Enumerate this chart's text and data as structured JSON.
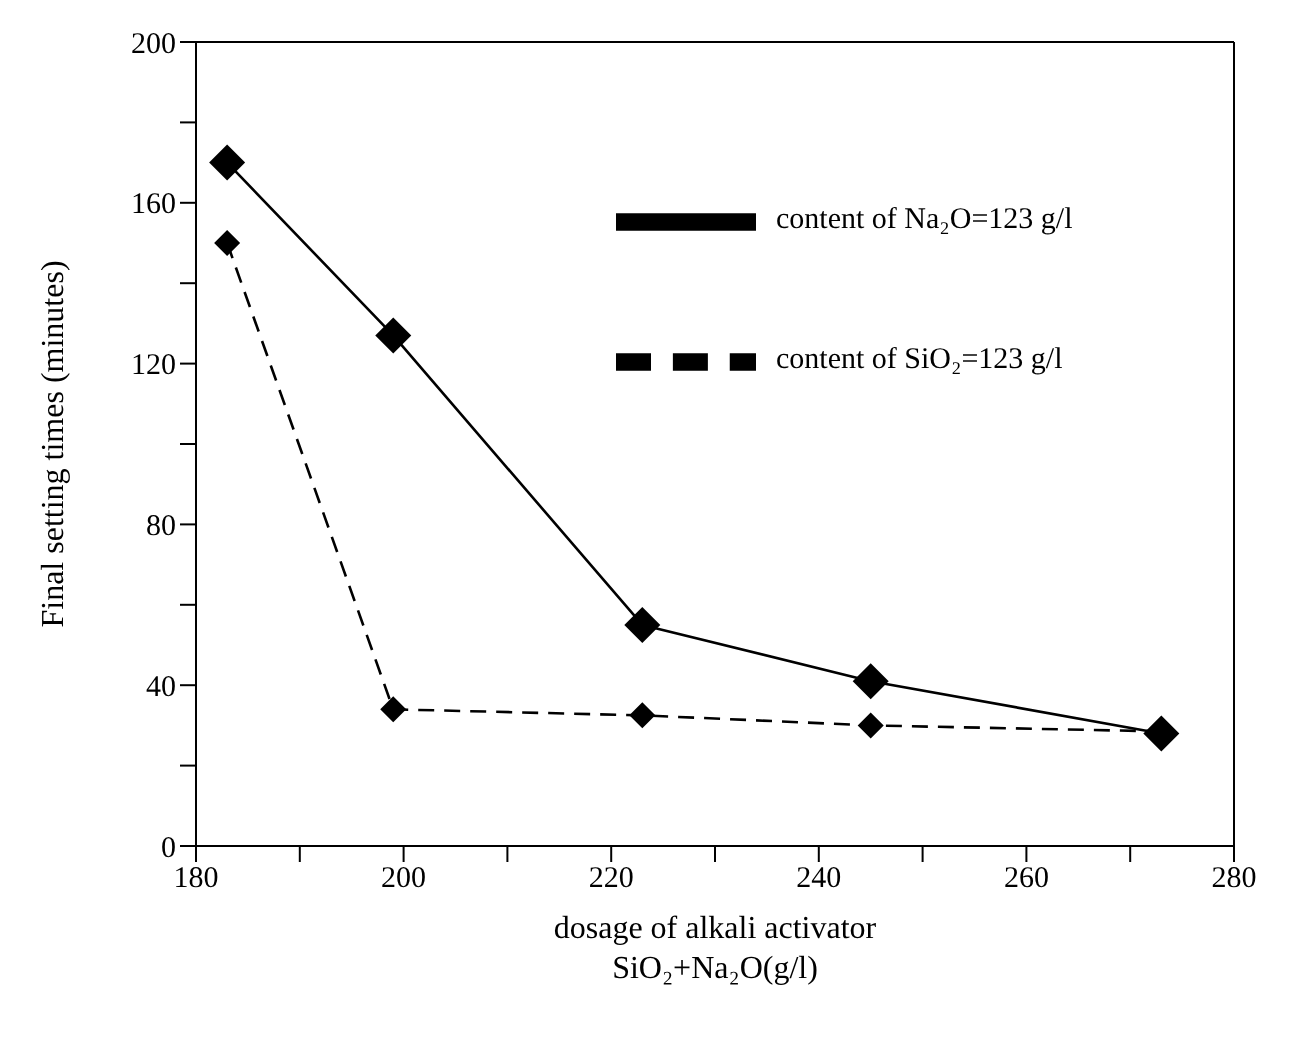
{
  "chart_data": {
    "type": "line",
    "xlabel": "dosage of alkali activator\nSiO₂+Na₂O(g/l)",
    "ylabel": "Final setting times (minutes)",
    "x": [
      183,
      199,
      223,
      245,
      273
    ],
    "series": [
      {
        "name": "content of Na₂O=123 g/l",
        "color": "#000000",
        "values": [
          170,
          127,
          55,
          41,
          28
        ],
        "line_style": "solid"
      },
      {
        "name": "content of SiO₂=123 g/l",
        "color": "#000000",
        "values": [
          150,
          34,
          32.5,
          30,
          28.5
        ],
        "line_style": "dashed"
      }
    ],
    "xlim": [
      180,
      280
    ],
    "xticks": [
      180,
      {
        "value": 190,
        "label": null
      },
      200,
      {
        "value": 210,
        "label": null
      },
      220,
      {
        "value": 230,
        "label": null
      },
      240,
      {
        "value": 250,
        "label": null
      },
      260,
      {
        "value": 270,
        "label": null
      },
      280
    ],
    "ylim": [
      0,
      200
    ],
    "yticks": [
      0,
      {
        "value": 20,
        "label": null
      },
      40,
      {
        "value": 60,
        "label": null
      },
      80,
      {
        "value": 100,
        "label": null
      },
      120,
      {
        "value": 140,
        "label": null
      },
      160,
      {
        "value": 180,
        "label": null
      },
      200
    ],
    "grid": false,
    "legend": "top right",
    "marker": "diamond"
  }
}
